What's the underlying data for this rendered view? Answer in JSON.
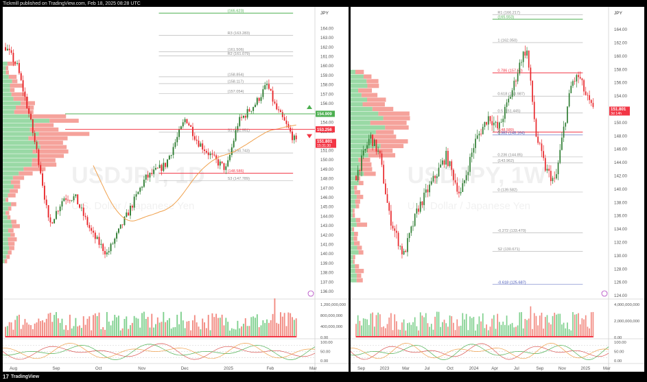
{
  "header": {
    "publisher": "Tickmill published on TradingView.com, Feb 18, 2025 08:28 UTC"
  },
  "footer": {
    "brand": "TradingView",
    "logo_icon": "tradingview-logo-icon"
  },
  "colors": {
    "up": "#26a69a",
    "down": "#ef5350",
    "upBright": "#2e7d32",
    "downBright": "#e8272b",
    "ma": "#f0a04b",
    "green": "#4caf50",
    "red": "#f23645",
    "grey": "#9e9e9e",
    "profileUp": "#7fd08e",
    "profileDown": "#f28b82"
  },
  "chart_data": [
    {
      "type": "candlestick",
      "name": "left-panel-daily",
      "watermark": {
        "symbol": "USDJPY, 1D",
        "description": "U.S. Dollar / Japanese Yen"
      },
      "currency": "JPY",
      "ylim": [
        135.2,
        166.0
      ],
      "price_ticks": [
        136.0,
        137.0,
        138.0,
        139.0,
        140.0,
        141.0,
        142.0,
        143.0,
        144.0,
        145.0,
        146.0,
        147.0,
        148.0,
        149.0,
        150.0,
        151.0,
        152.0,
        153.0,
        154.0,
        155.0,
        156.0,
        157.0,
        158.0,
        159.0,
        160.0,
        161.0,
        162.0,
        163.0,
        164.0,
        165.0
      ],
      "x_labels": [
        "Aug",
        "Sep",
        "Oct",
        "Nov",
        "Dec",
        "2025",
        "Feb",
        "Mar"
      ],
      "last_price": {
        "value": "151.801",
        "countdown": "15:31:30"
      },
      "markers": [
        {
          "value": "154.909",
          "color": "green",
          "arrow": "up"
        },
        {
          "value": "153.256",
          "color": "red",
          "arrow": "down"
        }
      ],
      "levels": [
        {
          "label": "(165.623)",
          "value": 165.62,
          "color": "green"
        },
        {
          "label": "R3 (163.283)",
          "value": 163.28,
          "color": "grey"
        },
        {
          "label": "(161.506)",
          "value": 161.51,
          "color": "grey"
        },
        {
          "label": "R2 (161.079)",
          "value": 161.08,
          "color": "grey"
        },
        {
          "label": "(158.854)",
          "value": 158.85,
          "color": "grey"
        },
        {
          "label": "(158.117)",
          "value": 158.12,
          "color": "grey"
        },
        {
          "label": "(157.054)",
          "value": 157.05,
          "color": "grey"
        },
        {
          "label": "S1 (152.951)",
          "value": 152.95,
          "color": "grey"
        },
        {
          "label": "S2 (150.743)",
          "value": 150.74,
          "color": "grey"
        },
        {
          "label": "(148.586)",
          "value": 148.59,
          "color": "red"
        },
        {
          "label": "S3 (147.789)",
          "value": 147.79,
          "color": "grey"
        }
      ],
      "volume": {
        "ticks": [
          "1,200,000,000",
          "800,000,000",
          "400,000,000",
          "0.00"
        ]
      },
      "oscillator": {
        "ticks": [
          "100.00",
          "50.00",
          "0.00"
        ]
      }
    },
    {
      "type": "candlestick",
      "name": "right-panel-weekly",
      "watermark": {
        "symbol": "USDJPY, 1W",
        "description": "U.S. Dollar / Japanese Yen"
      },
      "currency": "JPY",
      "ylim": [
        123.5,
        167.0
      ],
      "price_ticks": [
        124.0,
        126.0,
        128.0,
        130.0,
        132.0,
        134.0,
        136.0,
        138.0,
        140.0,
        142.0,
        144.0,
        146.0,
        148.0,
        150.0,
        152.0,
        154.0,
        156.0,
        158.0,
        160.0,
        162.0,
        164.0,
        166.0
      ],
      "x_labels": [
        "Sep",
        "2023",
        "Mar",
        "Jul",
        "Oct",
        "2024",
        "Apr",
        "Jul",
        "Sep",
        "Nov",
        "2025",
        "Mar"
      ],
      "last_price": {
        "value": "151.801",
        "countdown": "3d 14h"
      },
      "levels": [
        {
          "label": "R1 (166.217)",
          "value": 166.22,
          "color": "grey"
        },
        {
          "label": "(165.553)",
          "value": 165.55,
          "color": "green"
        },
        {
          "label": "1 (162.050)",
          "value": 162.05,
          "color": "grey"
        },
        {
          "label": "0.786 (157.50)",
          "value": 157.5,
          "color": "red"
        },
        {
          "label": "0.618 (153.987)",
          "value": 153.99,
          "color": "grey"
        },
        {
          "label": "0.5 (151.445)",
          "value": 151.45,
          "color": "grey"
        },
        {
          "label": "(148.589)",
          "value": 148.59,
          "color": "red"
        },
        {
          "label": "0.382 (148.164)",
          "value": 148.16,
          "color": "blue"
        },
        {
          "label": "0.236 (144.85)",
          "value": 144.85,
          "color": "grey"
        },
        {
          "label": "(143.962)",
          "value": 143.96,
          "color": "grey"
        },
        {
          "label": "0 (139.582)",
          "value": 139.58,
          "color": "grey"
        },
        {
          "label": "-0.272 (133.470)",
          "value": 133.47,
          "color": "grey"
        },
        {
          "label": "S2 (130.671)",
          "value": 130.67,
          "color": "grey"
        },
        {
          "label": "-0.618 (125.687)",
          "value": 125.69,
          "color": "blue"
        }
      ],
      "volume": {
        "ticks": [
          "4,000,000,000",
          "2,000,000,000",
          "0.00"
        ]
      },
      "oscillator": {
        "ticks": [
          "100.00",
          "50.00",
          "0.00"
        ]
      }
    }
  ]
}
